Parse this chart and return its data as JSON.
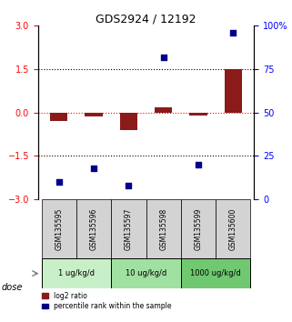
{
  "title": "GDS2924 / 12192",
  "samples": [
    "GSM135595",
    "GSM135596",
    "GSM135597",
    "GSM135598",
    "GSM135599",
    "GSM135600"
  ],
  "log2_ratio": [
    -0.28,
    -0.15,
    -0.6,
    0.18,
    -0.1,
    1.5
  ],
  "percentile_rank": [
    10,
    18,
    8,
    82,
    20,
    96
  ],
  "dose_groups": [
    {
      "label": "1 ug/kg/d",
      "samples": [
        0,
        1
      ],
      "color": "#c8f0c8"
    },
    {
      "label": "10 ug/kg/d",
      "samples": [
        2,
        3
      ],
      "color": "#a0e0a0"
    },
    {
      "label": "1000 ug/kg/d",
      "samples": [
        4,
        5
      ],
      "color": "#70c870"
    }
  ],
  "ylim_left": [
    -3,
    3
  ],
  "ylim_right": [
    0,
    100
  ],
  "yticks_left": [
    -3,
    -1.5,
    0,
    1.5,
    3
  ],
  "yticks_right": [
    0,
    25,
    50,
    75,
    100
  ],
  "bar_color": "#8b1a1a",
  "dot_color": "#00008b",
  "bar_width": 0.5,
  "sample_bg_color": "#d3d3d3",
  "dose_label": "dose",
  "legend_red": "log2 ratio",
  "legend_blue": "percentile rank within the sample"
}
